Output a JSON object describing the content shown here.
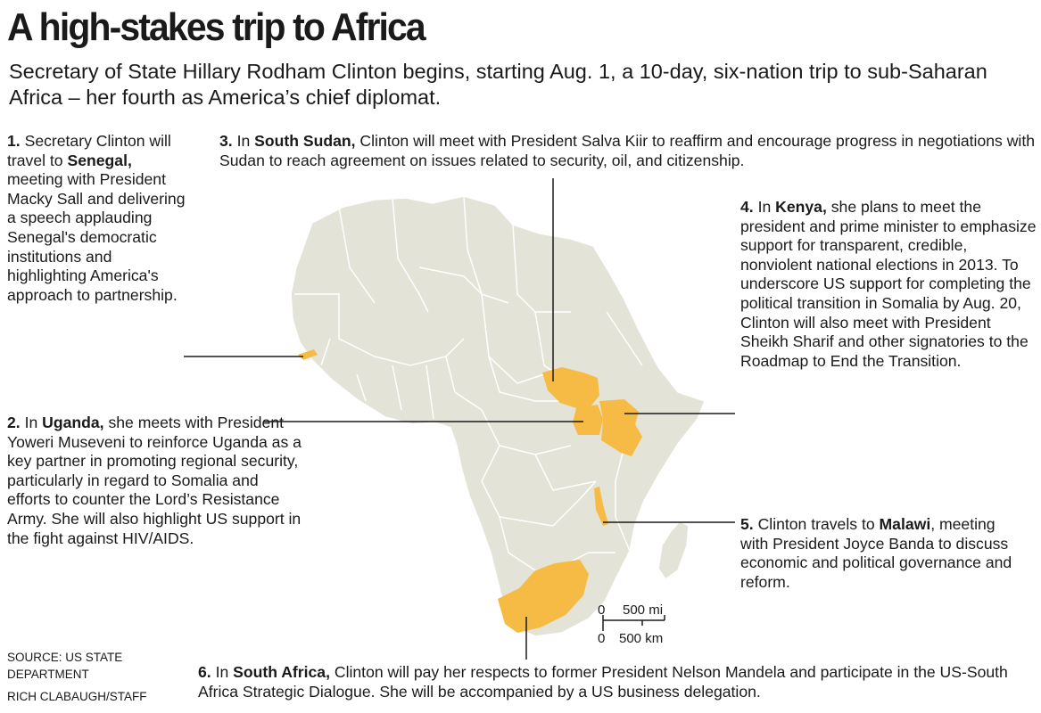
{
  "title": "A high-stakes trip to Africa",
  "deck": "Secretary of State Hillary Rodham Clinton begins, starting Aug. 1, a 10-day, six-nation trip to sub-Saharan Africa – her fourth as America’s chief diplomat.",
  "colors": {
    "land": "#e3e3d7",
    "highlight": "#f6bb45",
    "border": "#ffffff",
    "line": "#1a1a1a"
  },
  "stops": [
    {
      "num": "1.",
      "pre": "Secretary Clinton will travel to",
      "place": "Senegal,",
      "text": "meeting with President Macky Sall and delivering a speech applauding Senegal's democratic institutions and highlighting America's approach to partnership."
    },
    {
      "num": "2.",
      "pre": "In",
      "place": "Uganda,",
      "text": "she meets with President Yoweri Museveni to reinforce Uganda as a key partner in promoting regional security, particularly in regard to Somalia and efforts to counter the Lord’s Resistance Army. She will also highlight US support in the fight against HIV/AIDS."
    },
    {
      "num": "3.",
      "pre": "In",
      "place": "South Sudan,",
      "text": "Clinton will meet with President Salva Kiir to reaffirm and  encourage progress in negotiations with Sudan to reach agreement on issues related to security, oil, and citizenship."
    },
    {
      "num": "4.",
      "pre": "In",
      "place": "Kenya,",
      "text": "she plans to meet the president and prime minister to emphasize support for transparent, credible, nonviolent national elections in 2013. To underscore US support for completing the political transition in Somalia by Aug. 20, Clinton will also meet with President Sheikh Sharif and other signatories to the Roadmap to End the Transition."
    },
    {
      "num": "5.",
      "pre": "Clinton travels to",
      "place": "Malawi",
      "text": ", meeting with President Joyce Banda to discuss economic and political governance and reform."
    },
    {
      "num": "6.",
      "pre": "In",
      "place": "South Africa,",
      "text": "Clinton will pay her respects to former President Nelson Mandela and participate in the US-South Africa Strategic Dialogue. She will be accompanied by a US business delegation."
    }
  ],
  "scale": {
    "mi_zero": "0",
    "mi_label": "500 mi",
    "km_zero": "0",
    "km_label": "500 km"
  },
  "source": "SOURCE: US State Department",
  "credit": "RICH CLABAUGH/STAFF"
}
